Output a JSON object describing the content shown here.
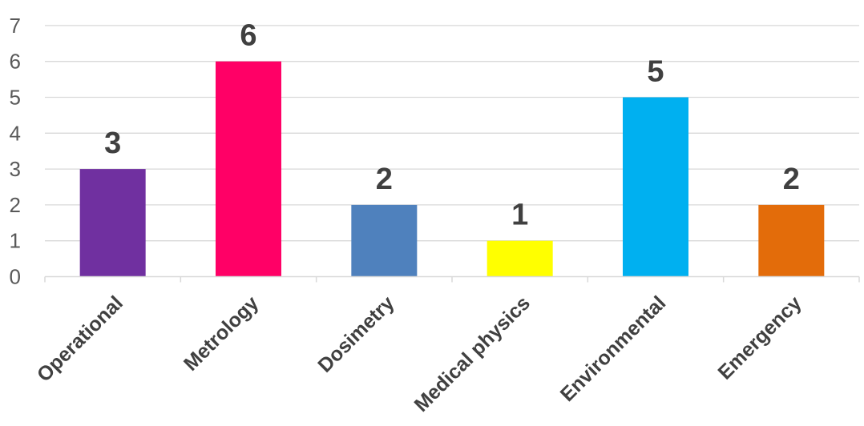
{
  "chart_data": {
    "type": "bar",
    "categories": [
      "Operational",
      "Metrology",
      "Dosimetry",
      "Medical physics",
      "Environmental",
      "Emergency"
    ],
    "values": [
      3,
      6,
      2,
      1,
      5,
      2
    ],
    "ylim": [
      0,
      7
    ],
    "yticks": [
      0,
      1,
      2,
      3,
      4,
      5,
      6,
      7
    ],
    "grid": true,
    "legend": "none",
    "colors": [
      "#7030a0",
      "#ff0066",
      "#4f81bd",
      "#ffff00",
      "#00b0f0",
      "#e36c0a"
    ],
    "gridline_color": "#d9d9d9",
    "axis_color": "#d9d9d9"
  }
}
